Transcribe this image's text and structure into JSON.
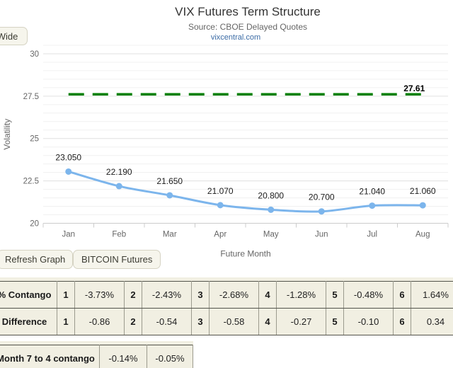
{
  "wide_button": {
    "label": "Wide"
  },
  "buttons": {
    "refresh": "Refresh Graph",
    "bitcoin": "BITCOIN Futures"
  },
  "chart_data": {
    "type": "line",
    "title": "VIX Futures Term Structure",
    "subtitle": "Source: CBOE Delayed Quotes",
    "credits_link": "vixcentral.com",
    "categories": [
      "Jan",
      "Feb",
      "Mar",
      "Apr",
      "May",
      "Jun",
      "Jul",
      "Aug"
    ],
    "series": [
      {
        "name": "VIX Futures",
        "values": [
          23.05,
          22.19,
          21.65,
          21.07,
          20.8,
          20.7,
          21.04,
          21.06
        ]
      }
    ],
    "data_labels": [
      "23.050",
      "22.190",
      "21.650",
      "21.070",
      "20.800",
      "20.700",
      "21.040",
      "21.060"
    ],
    "reference_line": {
      "value": 27.61,
      "label": "27.61",
      "color": "#008000",
      "style": "dashed"
    },
    "xlabel": "Future Month",
    "ylabel": "Volatility",
    "ylim": [
      20,
      30.5
    ],
    "y_major_ticks": [
      20,
      22.5,
      25,
      27.5,
      30
    ],
    "y_minor_interval": 0.5,
    "grid": true,
    "legend": false,
    "line_color": "#7cb5ec",
    "major_grid_color": "#e0e0e0",
    "minor_grid_color": "#f0f0f0",
    "axis_line_color": "#cccccc"
  },
  "contango_table": {
    "rows": [
      {
        "label": "% Contango",
        "cells": [
          {
            "i": "1",
            "v": "-3.73%"
          },
          {
            "i": "2",
            "v": "-2.43%"
          },
          {
            "i": "3",
            "v": "-2.68%"
          },
          {
            "i": "4",
            "v": "-1.28%"
          },
          {
            "i": "5",
            "v": "-0.48%"
          },
          {
            "i": "6",
            "v": "1.64%"
          }
        ]
      },
      {
        "label": "Difference",
        "cells": [
          {
            "i": "1",
            "v": "-0.86"
          },
          {
            "i": "2",
            "v": "-0.54"
          },
          {
            "i": "3",
            "v": "-0.58"
          },
          {
            "i": "4",
            "v": "-0.27"
          },
          {
            "i": "5",
            "v": "-0.10"
          },
          {
            "i": "6",
            "v": "0.34"
          }
        ]
      }
    ]
  },
  "month7to4_table": {
    "label": "Month 7 to 4 contango",
    "values": [
      "-0.14%",
      "-0.05%"
    ]
  }
}
